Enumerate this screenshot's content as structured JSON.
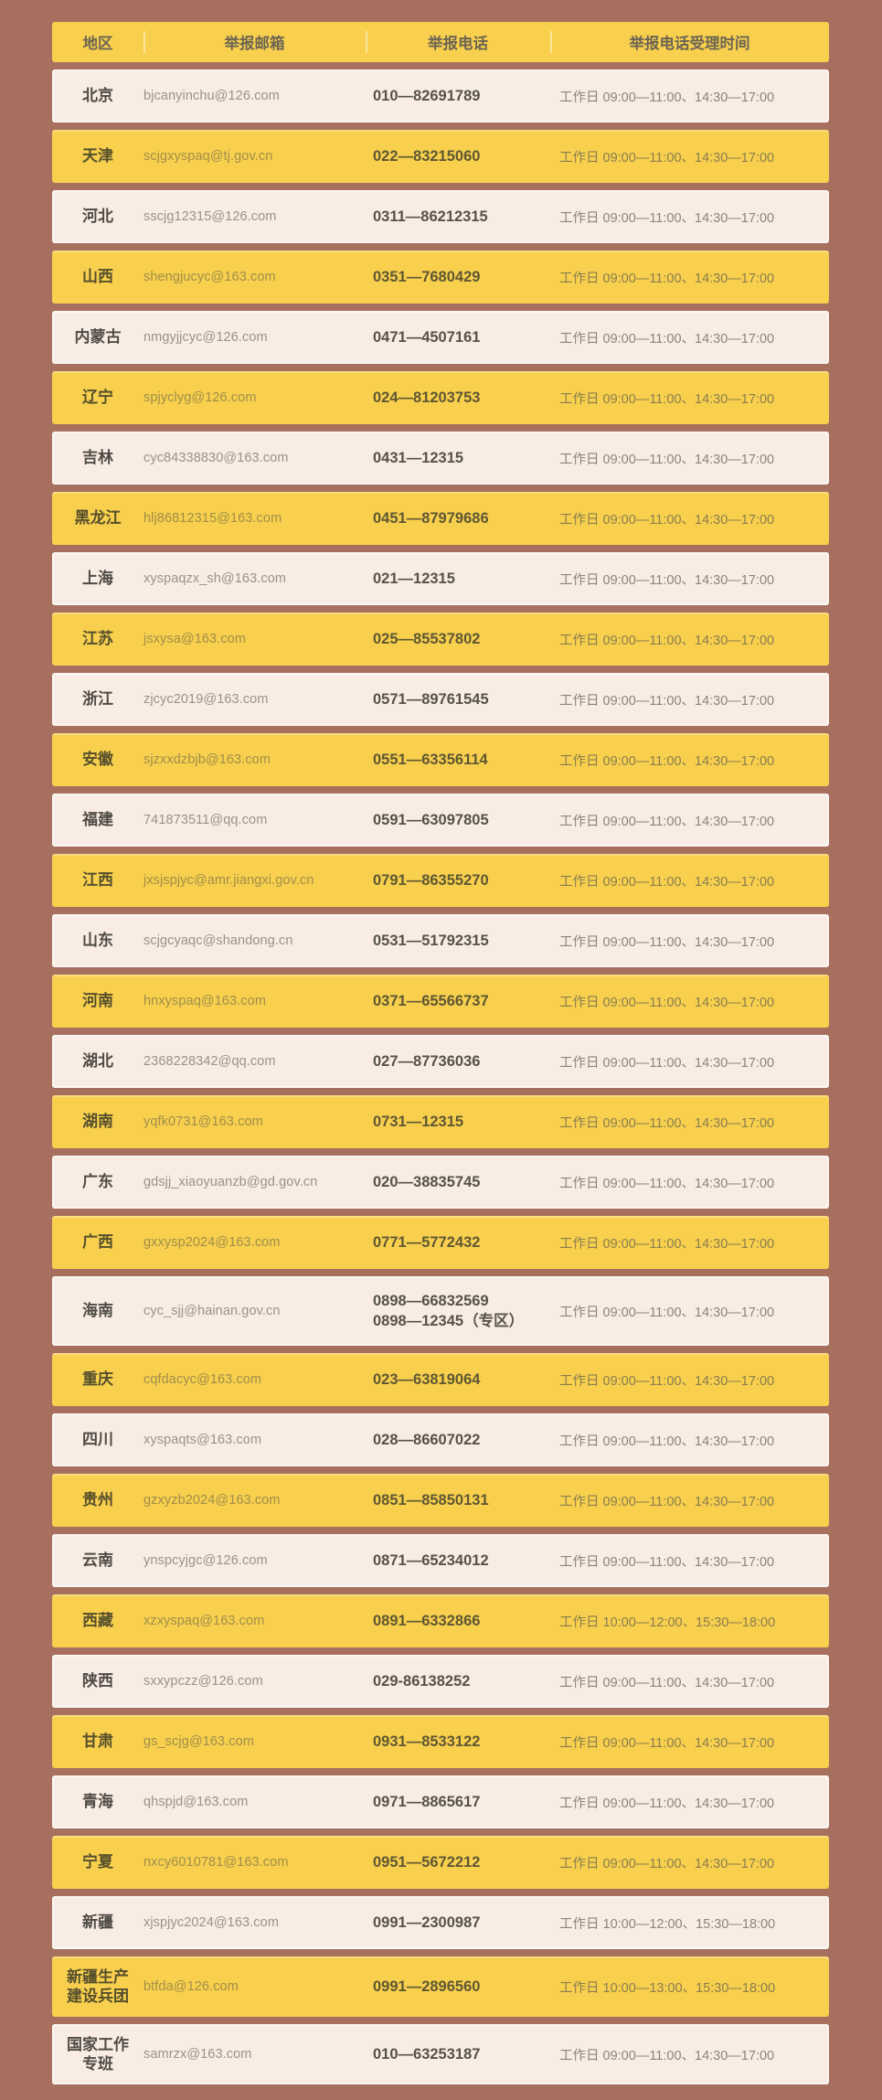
{
  "colors": {
    "page_background": "#a7705e",
    "yellow_band": "#f8d04e",
    "cream_band": "#f9ece4"
  },
  "header": {
    "region": "地区",
    "email": "举报邮箱",
    "phone": "举报电话",
    "time": "举报电话受理时间"
  },
  "rows": [
    {
      "region": "北京",
      "email": "bjcanyinchu@126.com",
      "phones": [
        "010—82691789"
      ],
      "time": "工作日 09:00—11:00、14:30—17:00"
    },
    {
      "region": "天津",
      "email": "scjgxyspaq@tj.gov.cn",
      "phones": [
        "022—83215060"
      ],
      "time": "工作日 09:00—11:00、14:30—17:00"
    },
    {
      "region": "河北",
      "email": "sscjg12315@126.com",
      "phones": [
        "0311—86212315"
      ],
      "time": "工作日 09:00—11:00、14:30—17:00"
    },
    {
      "region": "山西",
      "email": "shengjucyc@163.com",
      "phones": [
        "0351—7680429"
      ],
      "time": "工作日 09:00—11:00、14:30—17:00"
    },
    {
      "region": "内蒙古",
      "email": "nmgyjjcyc@126.com",
      "phones": [
        "0471—4507161"
      ],
      "time": "工作日 09:00—11:00、14:30—17:00"
    },
    {
      "region": "辽宁",
      "email": "spjyclyg@126.com",
      "phones": [
        "024—81203753"
      ],
      "time": "工作日 09:00—11:00、14:30—17:00"
    },
    {
      "region": "吉林",
      "email": "cyc84338830@163.com",
      "phones": [
        "0431—12315"
      ],
      "time": "工作日 09:00—11:00、14:30—17:00"
    },
    {
      "region": "黑龙江",
      "email": "hlj86812315@163.com",
      "phones": [
        "0451—87979686"
      ],
      "time": "工作日 09:00—11:00、14:30—17:00"
    },
    {
      "region": "上海",
      "email": "xyspaqzx_sh@163.com",
      "phones": [
        "021—12315"
      ],
      "time": "工作日 09:00—11:00、14:30—17:00"
    },
    {
      "region": "江苏",
      "email": "jsxysa@163.com",
      "phones": [
        "025—85537802"
      ],
      "time": "工作日 09:00—11:00、14:30—17:00"
    },
    {
      "region": "浙江",
      "email": "zjcyc2019@163.com",
      "phones": [
        "0571—89761545"
      ],
      "time": "工作日 09:00—11:00、14:30—17:00"
    },
    {
      "region": "安徽",
      "email": "sjzxxdzbjb@163.com",
      "phones": [
        "0551—63356114"
      ],
      "time": "工作日 09:00—11:00、14:30—17:00"
    },
    {
      "region": "福建",
      "email": "741873511@qq.com",
      "phones": [
        "0591—63097805"
      ],
      "time": "工作日 09:00—11:00、14:30—17:00"
    },
    {
      "region": "江西",
      "email": "jxsjspjyc@amr.jiangxi.gov.cn",
      "phones": [
        "0791—86355270"
      ],
      "time": "工作日 09:00—11:00、14:30—17:00"
    },
    {
      "region": "山东",
      "email": "scjgcyaqc@shandong.cn",
      "phones": [
        "0531—51792315"
      ],
      "time": "工作日 09:00—11:00、14:30—17:00"
    },
    {
      "region": "河南",
      "email": "hnxyspaq@163.com",
      "phones": [
        "0371—65566737"
      ],
      "time": "工作日 09:00—11:00、14:30—17:00"
    },
    {
      "region": "湖北",
      "email": "2368228342@qq.com",
      "phones": [
        "027—87736036"
      ],
      "time": "工作日 09:00—11:00、14:30—17:00"
    },
    {
      "region": "湖南",
      "email": "yqfk0731@163.com",
      "phones": [
        "0731—12315"
      ],
      "time": "工作日 09:00—11:00、14:30—17:00"
    },
    {
      "region": "广东",
      "email": "gdsjj_xiaoyuanzb@gd.gov.cn",
      "phones": [
        "020—38835745"
      ],
      "time": "工作日 09:00—11:00、14:30—17:00"
    },
    {
      "region": "广西",
      "email": "gxxysp2024@163.com",
      "phones": [
        "0771—5772432"
      ],
      "time": "工作日 09:00—11:00、14:30—17:00"
    },
    {
      "region": "海南",
      "email": "cyc_sjj@hainan.gov.cn",
      "phones": [
        "0898—66832569",
        "0898—12345（专区）"
      ],
      "time": "工作日 09:00—11:00、14:30—17:00"
    },
    {
      "region": "重庆",
      "email": "cqfdacyc@163.com",
      "phones": [
        "023—63819064"
      ],
      "time": "工作日 09:00—11:00、14:30—17:00"
    },
    {
      "region": "四川",
      "email": "xyspaqts@163.com",
      "phones": [
        "028—86607022"
      ],
      "time": "工作日 09:00—11:00、14:30—17:00"
    },
    {
      "region": "贵州",
      "email": "gzxyzb2024@163.com",
      "phones": [
        "0851—85850131"
      ],
      "time": "工作日 09:00—11:00、14:30—17:00"
    },
    {
      "region": "云南",
      "email": "ynspcyjgc@126.com",
      "phones": [
        "0871—65234012"
      ],
      "time": "工作日 09:00—11:00、14:30—17:00"
    },
    {
      "region": "西藏",
      "email": "xzxyspaq@163.com",
      "phones": [
        "0891—6332866"
      ],
      "time": "工作日 10:00—12:00、15:30—18:00"
    },
    {
      "region": "陕西",
      "email": "sxxypczz@126.com",
      "phones": [
        "029-86138252"
      ],
      "time": "工作日 09:00—11:00、14:30—17:00"
    },
    {
      "region": "甘肃",
      "email": "gs_scjg@163.com",
      "phones": [
        "0931—8533122"
      ],
      "time": "工作日 09:00—11:00、14:30—17:00"
    },
    {
      "region": "青海",
      "email": "qhspjd@163.com",
      "phones": [
        "0971—8865617"
      ],
      "time": "工作日 09:00—11:00、14:30—17:00"
    },
    {
      "region": "宁夏",
      "email": "nxcy6010781@163.com",
      "phones": [
        "0951—5672212"
      ],
      "time": "工作日 09:00—11:00、14:30—17:00"
    },
    {
      "region": "新疆",
      "email": "xjspjyc2024@163.com",
      "phones": [
        "0991—2300987"
      ],
      "time": "工作日 10:00—12:00、15:30—18:00"
    },
    {
      "region": "新疆生产建设兵团",
      "email": "btfda@126.com",
      "phones": [
        "0991—2896560"
      ],
      "time": "工作日 10:00—13:00、15:30—18:00"
    },
    {
      "region": "国家工作专班",
      "email": "samrzx@163.com",
      "phones": [
        "010—63253187"
      ],
      "time": "工作日 09:00—11:00、14:30—17:00"
    }
  ]
}
